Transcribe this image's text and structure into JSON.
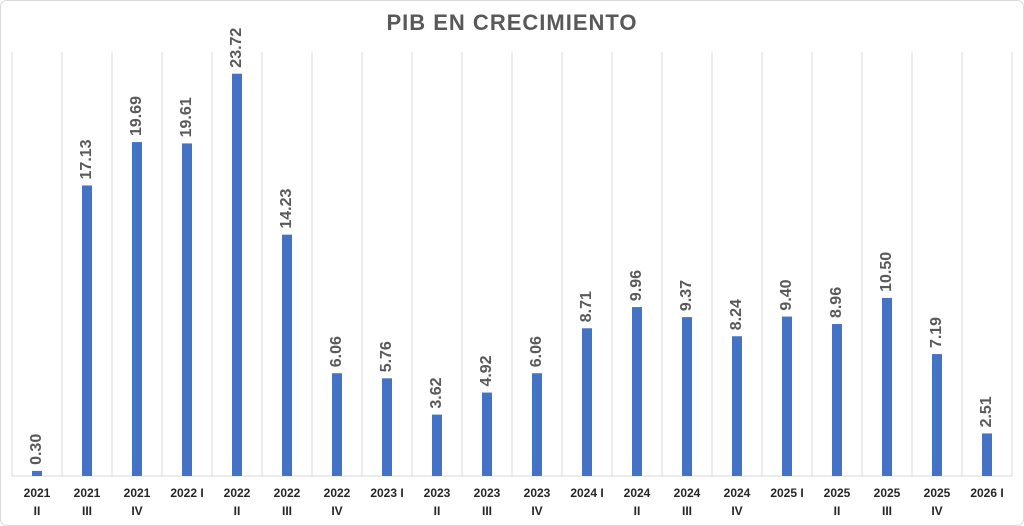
{
  "chart_data": {
    "type": "bar",
    "title": "PIB EN CRECIMIENTO",
    "categories": [
      [
        "2021",
        "II"
      ],
      [
        "2021",
        "III"
      ],
      [
        "2021",
        "IV"
      ],
      [
        "2022 I"
      ],
      [
        "2022",
        "II"
      ],
      [
        "2022",
        "III"
      ],
      [
        "2022",
        "IV"
      ],
      [
        "2023 I"
      ],
      [
        "2023",
        "II"
      ],
      [
        "2023",
        "III"
      ],
      [
        "2023",
        "IV"
      ],
      [
        "2024 I"
      ],
      [
        "2024",
        "II"
      ],
      [
        "2024",
        "III"
      ],
      [
        "2024",
        "IV"
      ],
      [
        "2025 I"
      ],
      [
        "2025",
        "II"
      ],
      [
        "2025",
        "III"
      ],
      [
        "2025",
        "IV"
      ],
      [
        "2026 I"
      ]
    ],
    "values": [
      0.3,
      17.13,
      19.69,
      19.61,
      23.72,
      14.23,
      6.06,
      5.76,
      3.62,
      4.92,
      6.06,
      8.71,
      9.96,
      9.37,
      8.24,
      9.4,
      8.96,
      10.5,
      7.19,
      2.51
    ],
    "value_labels": [
      "0.30",
      "17.13",
      "19.69",
      "19.61",
      "23.72",
      "14.23",
      "6.06",
      "5.76",
      "3.62",
      "4.92",
      "6.06",
      "8.71",
      "9.96",
      "9.37",
      "8.24",
      "9.40",
      "8.96",
      "10.50",
      "7.19",
      "2.51"
    ],
    "color": "#4472c4",
    "ylim": [
      0,
      25
    ],
    "grid": true
  }
}
